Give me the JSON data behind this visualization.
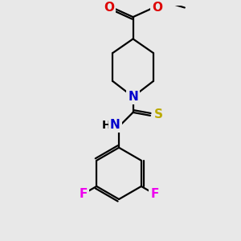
{
  "background_color": "#e8e8e8",
  "atom_colors": {
    "C": "#000000",
    "N": "#0000cc",
    "O": "#dd0000",
    "S": "#bbaa00",
    "F": "#ee00ee",
    "H": "#000000"
  },
  "figsize": [
    3.0,
    3.0
  ],
  "dpi": 100,
  "bond_lw": 1.6,
  "font_size": 11
}
